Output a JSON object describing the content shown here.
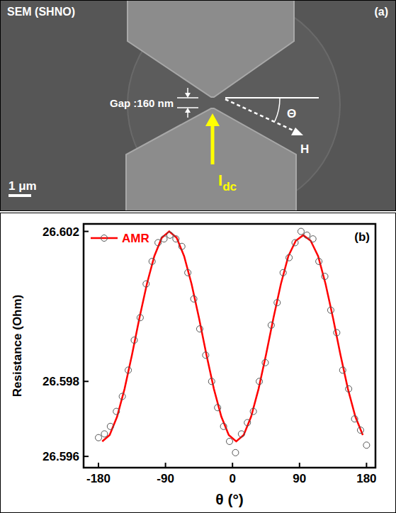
{
  "panel_a": {
    "title": "SEM (SHNO)",
    "label": "(a)",
    "gap_label": "Gap :160 nm",
    "angle_label": "Θ",
    "field_label": "H",
    "current_label": "I",
    "current_subscript": "dc",
    "scale_bar": "1 μm"
  },
  "chart_data": {
    "type": "scatter",
    "label": "(b)",
    "x_label": "θ (°)",
    "y_label": "Resistance (Ohm)",
    "xlim": [
      -200,
      192
    ],
    "xticks": [
      -180,
      -90,
      0,
      90,
      180
    ],
    "ylim": [
      26.5957,
      26.6022
    ],
    "yticks": [
      26.596,
      26.598,
      26.602
    ],
    "legend": "top-left",
    "series": [
      {
        "name": "AMR",
        "type": "line",
        "color": "#ff0000",
        "line_style": "solid",
        "x": [
          -175,
          -165,
          -155,
          -145,
          -135,
          -125,
          -115,
          -105,
          -95,
          -85,
          -75,
          -65,
          -55,
          -45,
          -35,
          -25,
          -15,
          -5,
          5,
          15,
          25,
          35,
          45,
          55,
          65,
          75,
          85,
          95,
          105,
          115,
          125,
          135,
          145,
          155,
          165,
          175
        ],
        "values": [
          26.5964,
          26.59657,
          26.59706,
          26.5978,
          26.59871,
          26.59969,
          26.6006,
          26.60134,
          26.60183,
          26.602,
          26.60183,
          26.60134,
          26.6006,
          26.59969,
          26.59871,
          26.5978,
          26.59706,
          26.59657,
          26.5964,
          26.59657,
          26.59706,
          26.5978,
          26.59871,
          26.59969,
          26.6006,
          26.60134,
          26.60175,
          26.6019,
          26.60175,
          26.60134,
          26.6006,
          26.59969,
          26.59871,
          26.5978,
          26.59706,
          26.59657
        ]
      },
      {
        "type": "scatter",
        "marker": "circle",
        "color": "#555555",
        "x": [
          -180,
          -172,
          -164,
          -156,
          -148,
          -140,
          -132,
          -124,
          -116,
          -108,
          -100,
          -92,
          -84,
          -76,
          -68,
          -60,
          -52,
          -44,
          -36,
          -28,
          -20,
          -12,
          -4,
          4,
          12,
          20,
          28,
          36,
          44,
          52,
          60,
          68,
          76,
          84,
          92,
          100,
          108,
          116,
          124,
          132,
          140,
          148,
          156,
          164,
          172,
          180
        ],
        "values": [
          26.5965,
          26.5966,
          26.5968,
          26.5972,
          26.5976,
          26.5983,
          26.5991,
          26.5997,
          26.6006,
          26.6012,
          26.6017,
          26.6018,
          26.6019,
          26.6018,
          26.6016,
          26.6009,
          26.6002,
          26.5994,
          26.5987,
          26.598,
          26.5973,
          26.5968,
          26.5964,
          26.5961,
          26.5966,
          26.5969,
          26.5972,
          26.598,
          26.5985,
          26.5995,
          26.6001,
          26.6009,
          26.6013,
          26.6017,
          26.602,
          26.6019,
          26.6018,
          26.6012,
          26.6008,
          26.5999,
          26.5993,
          26.5983,
          26.5978,
          26.597,
          26.5967,
          26.5963
        ]
      }
    ]
  }
}
